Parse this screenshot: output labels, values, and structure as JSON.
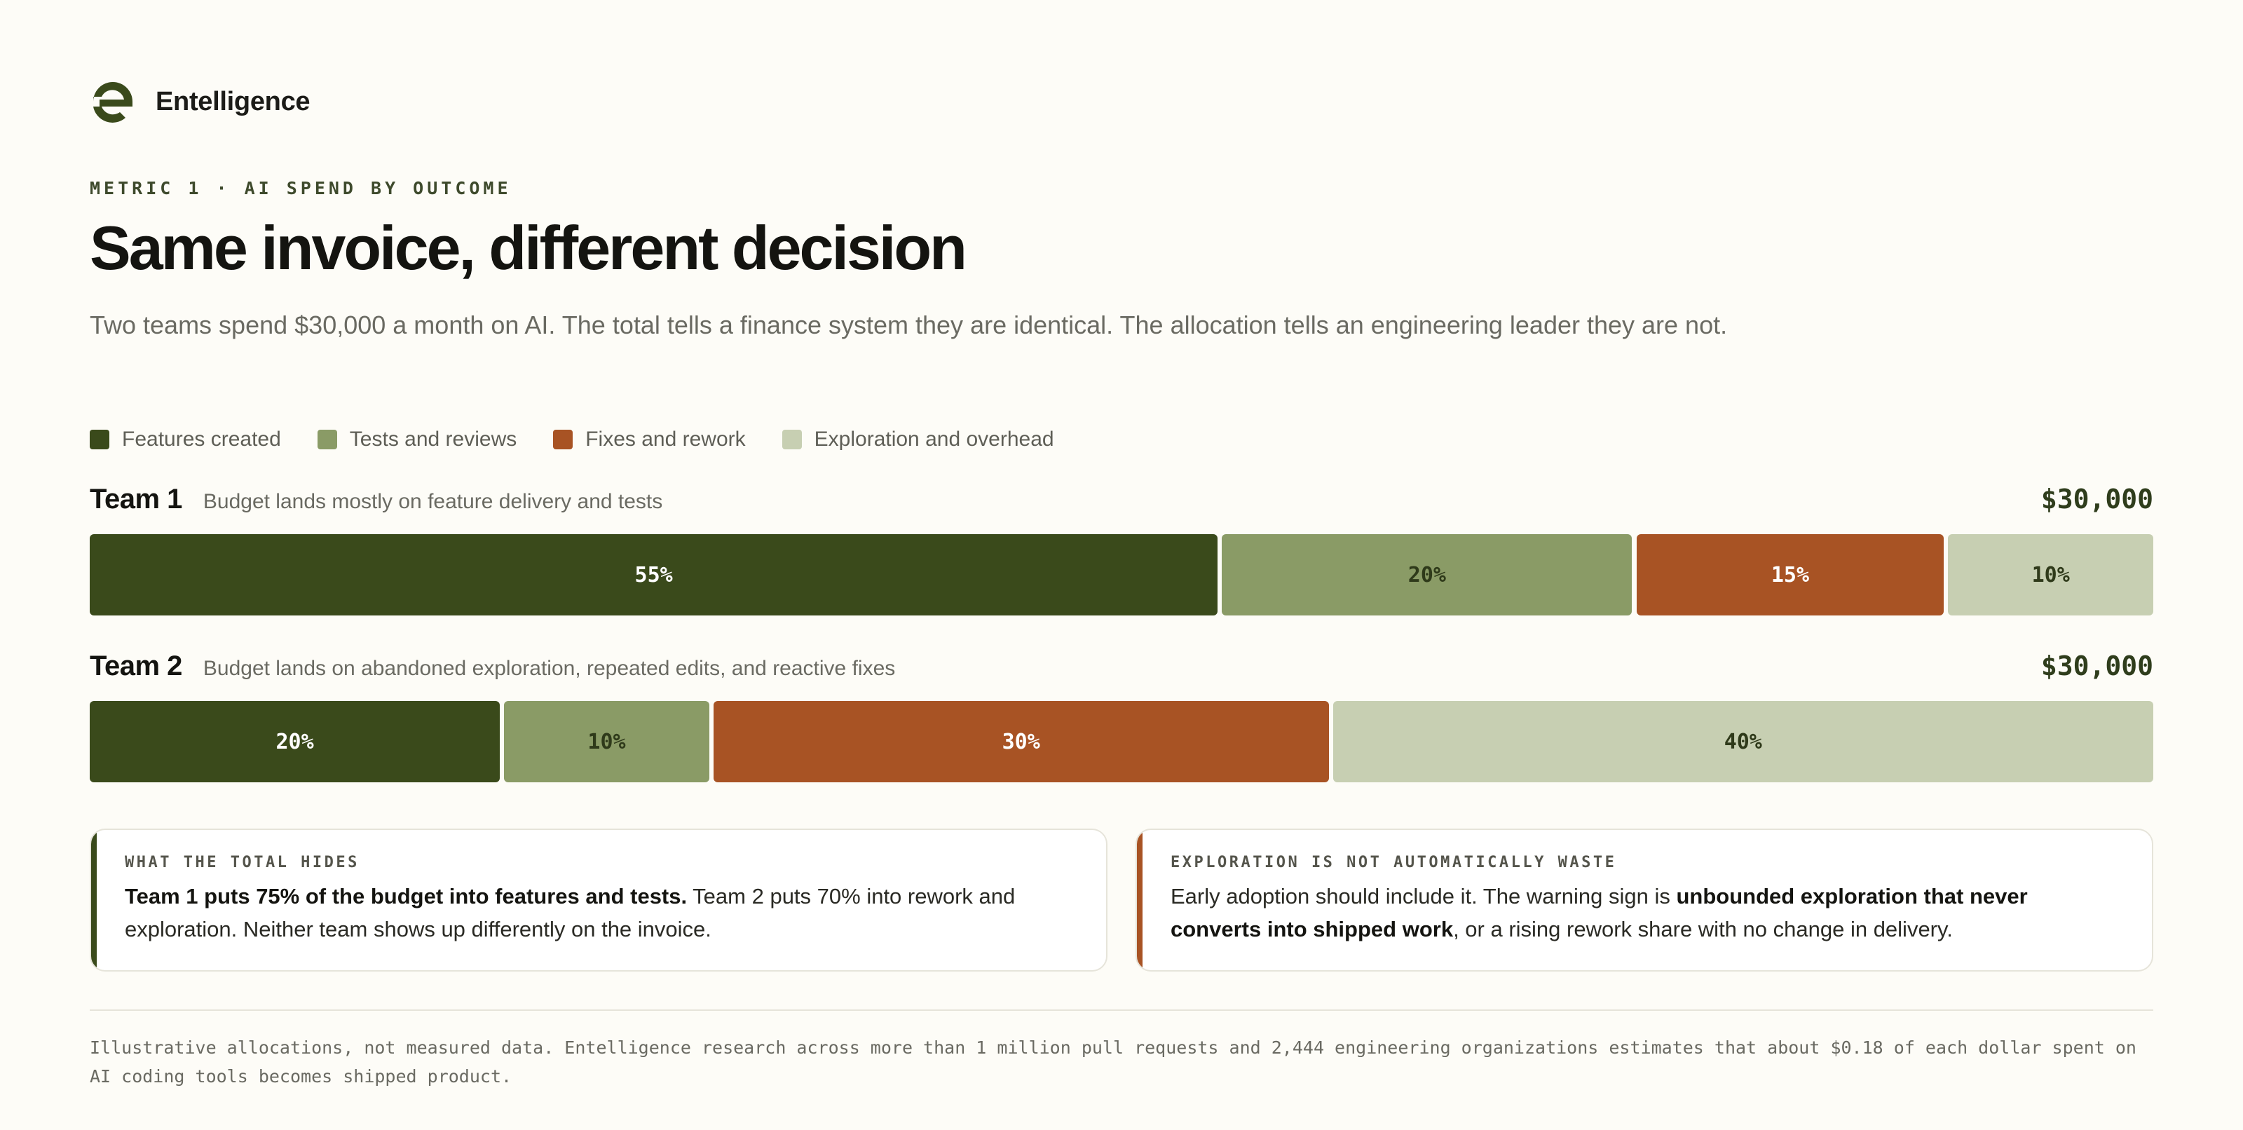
{
  "brand": {
    "name": "Entelligence",
    "logo_icon": "entelligence-e-logo-icon"
  },
  "header": {
    "eyebrow": "METRIC 1 · AI SPEND BY OUTCOME",
    "title": "Same invoice, different decision",
    "subtitle": "Two teams spend $30,000 a month on AI. The total tells a finance system they are identical. The allocation tells an engineering leader they are not."
  },
  "colors": {
    "features": "#3a4a1b",
    "tests": "#8a9b66",
    "fixes": "#a85324",
    "exploration": "#c7cfb2",
    "background": "#fdfcf7"
  },
  "chart_data": {
    "type": "bar",
    "orientation": "horizontal-stacked-100",
    "series": [
      {
        "name": "Features created",
        "color": "#3a4a1b",
        "values": [
          55,
          20
        ]
      },
      {
        "name": "Tests and reviews",
        "color": "#8a9b66",
        "values": [
          20,
          10
        ]
      },
      {
        "name": "Fixes and rework",
        "color": "#a85324",
        "values": [
          15,
          30
        ]
      },
      {
        "name": "Exploration and overhead",
        "color": "#c7cfb2",
        "values": [
          10,
          40
        ]
      }
    ],
    "categories": [
      "Team 1",
      "Team 2"
    ],
    "unit": "%",
    "legend": "top-left",
    "teams": [
      {
        "name": "Team 1",
        "description": "Budget lands mostly on feature delivery and tests",
        "total": "$30,000",
        "segments": [
          {
            "label": "55%",
            "value": 55
          },
          {
            "label": "20%",
            "value": 20
          },
          {
            "label": "15%",
            "value": 15
          },
          {
            "label": "10%",
            "value": 10
          }
        ]
      },
      {
        "name": "Team 2",
        "description": "Budget lands on abandoned exploration, repeated edits, and reactive fixes",
        "total": "$30,000",
        "segments": [
          {
            "label": "20%",
            "value": 20
          },
          {
            "label": "10%",
            "value": 10
          },
          {
            "label": "30%",
            "value": 30
          },
          {
            "label": "40%",
            "value": 40
          }
        ]
      }
    ]
  },
  "callouts": [
    {
      "label": "WHAT THE TOTAL HIDES",
      "bold_lead": "Team 1 puts 75% of the budget into features and tests.",
      "rest": " Team 2 puts 70% into rework and exploration. Neither team shows up differently on the invoice."
    },
    {
      "label": "EXPLORATION IS NOT AUTOMATICALLY WASTE",
      "lead": "Early adoption should include it. The warning sign is ",
      "bold": "unbounded exploration that never converts into shipped work",
      "tail": ", or a rising rework share with no change in delivery."
    }
  ],
  "footnote": "Illustrative allocations, not measured data. Entelligence research across more than 1 million pull requests and 2,444 engineering organizations estimates that about $0.18 of each dollar spent on AI coding tools becomes shipped product."
}
